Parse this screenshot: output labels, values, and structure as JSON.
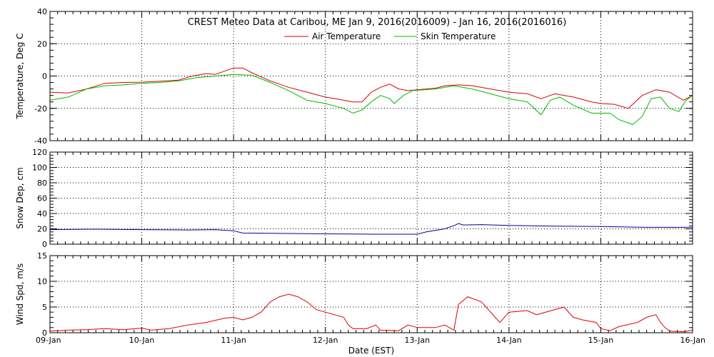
{
  "chart_data": {
    "type": "line",
    "title": "CREST Meteo Data at Caribou, ME   Jan  9, 2016(2016009) - Jan 16, 2016(2016016)",
    "xlabel": "Date (EST)",
    "x_ticks": [
      "09-Jan",
      "10-Jan",
      "11-Jan",
      "12-Jan",
      "13-Jan",
      "14-Jan",
      "15-Jan",
      "16-Jan"
    ],
    "xlim": [
      9,
      16
    ],
    "panels": [
      {
        "ylabel": "Temperature, Deg C",
        "ylim": [
          -40,
          40
        ],
        "yticks": [
          -40,
          -20,
          0,
          20,
          40
        ],
        "legend": "top-center",
        "series": [
          {
            "name": "Air Temperature",
            "color": "#dd0000",
            "points": [
              [
                9.0,
                -10
              ],
              [
                9.2,
                -10.5
              ],
              [
                9.4,
                -8
              ],
              [
                9.6,
                -4.5
              ],
              [
                9.8,
                -4
              ],
              [
                10.0,
                -3.8
              ],
              [
                10.2,
                -3.2
              ],
              [
                10.4,
                -2.5
              ],
              [
                10.55,
                0
              ],
              [
                10.7,
                1.5
              ],
              [
                10.8,
                1
              ],
              [
                10.9,
                3
              ],
              [
                11.0,
                5
              ],
              [
                11.1,
                5
              ],
              [
                11.2,
                2
              ],
              [
                11.4,
                -3
              ],
              [
                11.6,
                -7
              ],
              [
                11.8,
                -10
              ],
              [
                12.0,
                -13
              ],
              [
                12.2,
                -15
              ],
              [
                12.3,
                -16
              ],
              [
                12.4,
                -16
              ],
              [
                12.5,
                -10
              ],
              [
                12.6,
                -7
              ],
              [
                12.7,
                -5
              ],
              [
                12.8,
                -8
              ],
              [
                12.9,
                -9
              ],
              [
                13.0,
                -8.5
              ],
              [
                13.2,
                -7.5
              ],
              [
                13.3,
                -6
              ],
              [
                13.45,
                -5.5
              ],
              [
                13.6,
                -6
              ],
              [
                13.8,
                -8
              ],
              [
                14.0,
                -10
              ],
              [
                14.2,
                -11
              ],
              [
                14.35,
                -14
              ],
              [
                14.5,
                -11
              ],
              [
                14.7,
                -13
              ],
              [
                14.9,
                -16
              ],
              [
                15.0,
                -17
              ],
              [
                15.15,
                -17.5
              ],
              [
                15.3,
                -20
              ],
              [
                15.45,
                -12
              ],
              [
                15.6,
                -8.5
              ],
              [
                15.75,
                -10
              ],
              [
                15.9,
                -15
              ],
              [
                16.0,
                -12
              ]
            ]
          },
          {
            "name": "Skin Temperature",
            "color": "#00bb00",
            "points": [
              [
                9.0,
                -15
              ],
              [
                9.2,
                -13
              ],
              [
                9.4,
                -8
              ],
              [
                9.6,
                -6
              ],
              [
                9.8,
                -5.5
              ],
              [
                10.0,
                -4.5
              ],
              [
                10.2,
                -4
              ],
              [
                10.4,
                -3
              ],
              [
                10.6,
                -1
              ],
              [
                10.8,
                0
              ],
              [
                11.0,
                1
              ],
              [
                11.2,
                0.5
              ],
              [
                11.4,
                -4
              ],
              [
                11.6,
                -9
              ],
              [
                11.8,
                -15
              ],
              [
                12.0,
                -17
              ],
              [
                12.2,
                -20
              ],
              [
                12.3,
                -23
              ],
              [
                12.4,
                -21
              ],
              [
                12.5,
                -16
              ],
              [
                12.6,
                -12
              ],
              [
                12.7,
                -14
              ],
              [
                12.75,
                -17
              ],
              [
                12.85,
                -12
              ],
              [
                12.95,
                -9
              ],
              [
                13.2,
                -8
              ],
              [
                13.4,
                -6
              ],
              [
                13.6,
                -8
              ],
              [
                13.8,
                -11
              ],
              [
                14.0,
                -14
              ],
              [
                14.2,
                -16
              ],
              [
                14.35,
                -24
              ],
              [
                14.45,
                -15
              ],
              [
                14.55,
                -13
              ],
              [
                14.7,
                -18
              ],
              [
                14.9,
                -23
              ],
              [
                15.1,
                -23
              ],
              [
                15.2,
                -27
              ],
              [
                15.35,
                -30
              ],
              [
                15.45,
                -25
              ],
              [
                15.55,
                -14
              ],
              [
                15.65,
                -13
              ],
              [
                15.75,
                -20
              ],
              [
                15.85,
                -22
              ],
              [
                15.93,
                -15
              ],
              [
                16.0,
                -12
              ]
            ]
          }
        ]
      },
      {
        "ylabel": "Snow Dep, cm",
        "ylim": [
          0,
          120
        ],
        "yticks": [
          0,
          20,
          40,
          60,
          80,
          100,
          120
        ],
        "series": [
          {
            "name": "",
            "color": "#000099",
            "points": [
              [
                9.0,
                19
              ],
              [
                9.5,
                19.5
              ],
              [
                10.0,
                19
              ],
              [
                10.5,
                18.5
              ],
              [
                10.8,
                19
              ],
              [
                11.0,
                17.5
              ],
              [
                11.1,
                14.5
              ],
              [
                11.5,
                14
              ],
              [
                12.0,
                13.5
              ],
              [
                12.5,
                13
              ],
              [
                13.0,
                13
              ],
              [
                13.1,
                16
              ],
              [
                13.3,
                20
              ],
              [
                13.4,
                24
              ],
              [
                13.45,
                27
              ],
              [
                13.5,
                25
              ],
              [
                13.7,
                25.5
              ],
              [
                14.0,
                24.5
              ],
              [
                14.5,
                23.5
              ],
              [
                15.0,
                23
              ],
              [
                15.5,
                22
              ],
              [
                16.0,
                22
              ]
            ]
          }
        ]
      },
      {
        "ylabel": "Wind Spd, m/s",
        "ylim": [
          0,
          15
        ],
        "yticks": [
          0,
          5,
          10,
          15
        ],
        "series": [
          {
            "name": "",
            "color": "#dd0000",
            "points": [
              [
                9.0,
                0.3
              ],
              [
                9.2,
                0.5
              ],
              [
                9.4,
                0.6
              ],
              [
                9.6,
                0.8
              ],
              [
                9.8,
                0.6
              ],
              [
                10.0,
                0.9
              ],
              [
                10.1,
                0.5
              ],
              [
                10.3,
                0.8
              ],
              [
                10.5,
                1.5
              ],
              [
                10.7,
                2
              ],
              [
                10.9,
                2.8
              ],
              [
                11.0,
                3
              ],
              [
                11.1,
                2.5
              ],
              [
                11.2,
                3
              ],
              [
                11.3,
                4
              ],
              [
                11.4,
                6
              ],
              [
                11.5,
                7
              ],
              [
                11.6,
                7.5
              ],
              [
                11.7,
                7
              ],
              [
                11.8,
                6
              ],
              [
                11.9,
                4.5
              ],
              [
                12.0,
                4
              ],
              [
                12.1,
                3.5
              ],
              [
                12.2,
                3
              ],
              [
                12.25,
                1.5
              ],
              [
                12.3,
                0.8
              ],
              [
                12.45,
                0.8
              ],
              [
                12.55,
                1.5
              ],
              [
                12.6,
                0.5
              ],
              [
                12.8,
                0.4
              ],
              [
                12.9,
                1.5
              ],
              [
                13.0,
                1
              ],
              [
                13.2,
                1
              ],
              [
                13.3,
                1.5
              ],
              [
                13.4,
                0.5
              ],
              [
                13.45,
                5.5
              ],
              [
                13.55,
                7
              ],
              [
                13.7,
                6
              ],
              [
                13.8,
                4
              ],
              [
                13.9,
                2
              ],
              [
                14.0,
                4
              ],
              [
                14.2,
                4.3
              ],
              [
                14.3,
                3.5
              ],
              [
                14.5,
                4.5
              ],
              [
                14.6,
                5
              ],
              [
                14.7,
                3
              ],
              [
                14.8,
                2.5
              ],
              [
                14.95,
                2
              ],
              [
                15.0,
                0.8
              ],
              [
                15.1,
                0.4
              ],
              [
                15.2,
                1.2
              ],
              [
                15.4,
                2
              ],
              [
                15.5,
                3
              ],
              [
                15.6,
                3.5
              ],
              [
                15.65,
                2
              ],
              [
                15.7,
                1
              ],
              [
                15.75,
                0.3
              ],
              [
                15.9,
                0.2
              ],
              [
                16.0,
                0.5
              ]
            ]
          }
        ]
      }
    ]
  }
}
